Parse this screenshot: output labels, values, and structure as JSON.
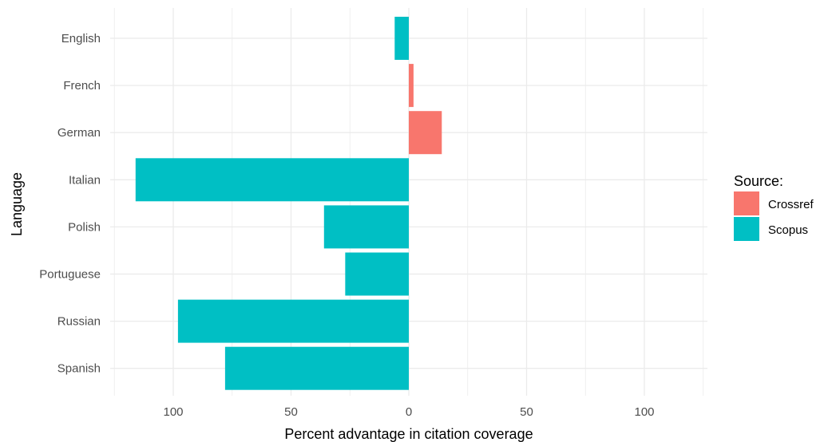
{
  "chart_data": {
    "type": "bar",
    "orientation": "horizontal",
    "categories": [
      "English",
      "French",
      "German",
      "Italian",
      "Polish",
      "Portuguese",
      "Russian",
      "Spanish"
    ],
    "values": [
      -6,
      2,
      14,
      -116,
      -36,
      -27,
      -98,
      -78
    ],
    "sources": [
      "Scopus",
      "Crossref",
      "Crossref",
      "Scopus",
      "Scopus",
      "Scopus",
      "Scopus",
      "Scopus"
    ],
    "xlabel": "Percent advantage in citation coverage",
    "ylabel": "Language",
    "x_ticks": [
      {
        "value": -100,
        "label": "100"
      },
      {
        "value": -50,
        "label": "50"
      },
      {
        "value": 0,
        "label": "0"
      },
      {
        "value": 50,
        "label": "50"
      },
      {
        "value": 100,
        "label": "100"
      }
    ],
    "xlim": [
      -125,
      125
    ],
    "grid": true,
    "legend": {
      "title": "Source:",
      "placement": "right",
      "entries": [
        {
          "name": "Crossref",
          "color": "#F8766D"
        },
        {
          "name": "Scopus",
          "color": "#00BFC4"
        }
      ]
    }
  }
}
